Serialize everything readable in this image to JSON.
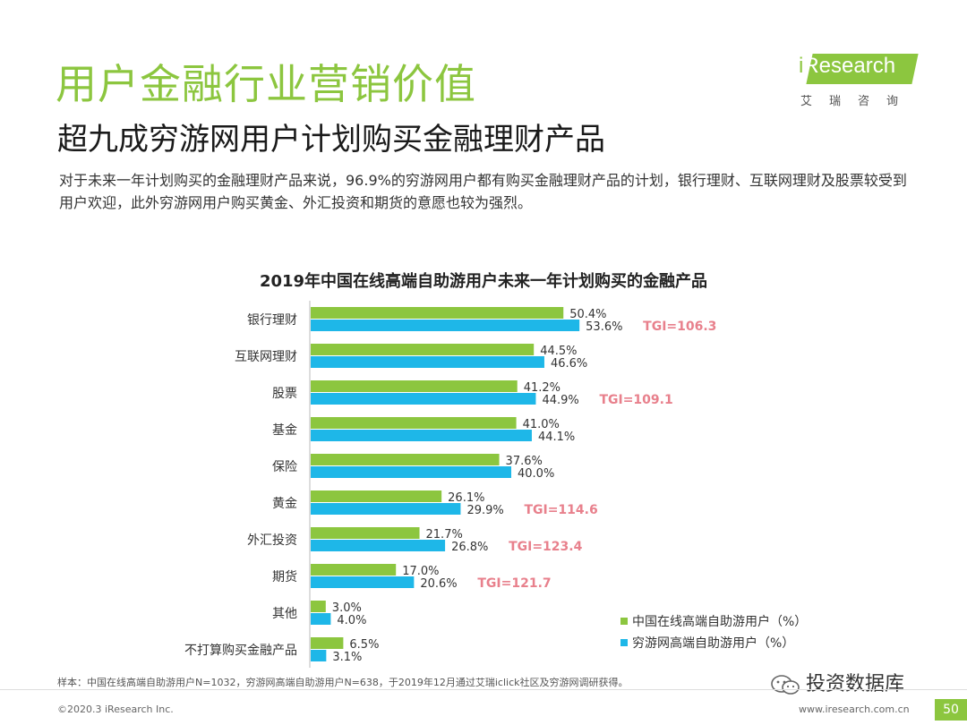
{
  "header": {
    "title": "用户金融行业营销价值",
    "subtitle": "超九成穷游网用户计划购买金融理财产品",
    "description": "对于未来一年计划购买的金融理财产品来说，96.9%的穷游网用户都有购买金融理财产品的计划，银行理财、互联网理财及股票较受到用户欢迎，此外穷游网用户购买黄金、外汇投资和期货的意愿也较为强烈。"
  },
  "logo": {
    "brand_i": "i",
    "brand_research": "Research",
    "sub": "艾瑞咨询"
  },
  "colors": {
    "accent_green": "#8cc63f",
    "accent_blue": "#1eb7e8",
    "tgi_pink": "#e8808c"
  },
  "chart_data": {
    "type": "bar",
    "orientation": "horizontal",
    "title": "2019年中国在线高端自助游用户未来一年计划购买的金融产品",
    "categories": [
      "银行理财",
      "互联网理财",
      "股票",
      "基金",
      "保险",
      "黄金",
      "外汇投资",
      "期货",
      "其他",
      "不打算购买金融产品"
    ],
    "series": [
      {
        "name": "中国在线高端自助游用户（%）",
        "color": "#8cc63f",
        "values": [
          50.4,
          44.5,
          41.2,
          41.0,
          37.6,
          26.1,
          21.7,
          17.0,
          3.0,
          6.5
        ],
        "labels": [
          "50.4%",
          "44.5%",
          "41.2%",
          "41.0%",
          "37.6%",
          "26.1%",
          "21.7%",
          "17.0%",
          "3.0%",
          "6.5%"
        ]
      },
      {
        "name": "穷游网高端自助游用户（%）",
        "color": "#1eb7e8",
        "values": [
          53.6,
          46.6,
          44.9,
          44.1,
          40.0,
          29.9,
          26.8,
          20.6,
          4.0,
          3.1
        ],
        "labels": [
          "53.6%",
          "46.6%",
          "44.9%",
          "44.1%",
          "40.0%",
          "29.9%",
          "26.8%",
          "20.6%",
          "4.0%",
          "3.1%"
        ]
      }
    ],
    "tgi": [
      "TGI=106.3",
      null,
      "TGI=109.1",
      null,
      null,
      "TGI=114.6",
      "TGI=123.4",
      "TGI=121.7",
      null,
      null
    ],
    "xlim": [
      0,
      100
    ],
    "legend_position": "bottom-right"
  },
  "footer": {
    "source": "样本：中国在线高端自助游用户N=1032，穷游网高端自助游用户N=638，于2019年12月通过艾瑞iclick社区及穷游网调研获得。",
    "copyright": "©2020.3 iResearch Inc.",
    "website": "www.iresearch.com.cn",
    "page": "50",
    "watermark": "投资数据库"
  }
}
